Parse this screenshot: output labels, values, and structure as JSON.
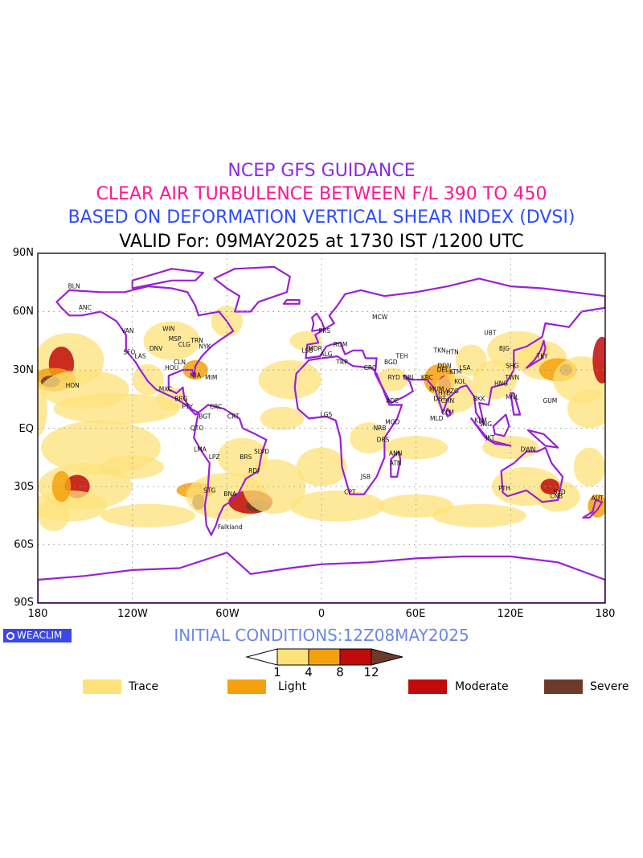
{
  "titles": {
    "line1": "NCEP GFS GUIDANCE",
    "line2": "CLEAR AIR TURBULENCE BETWEEN F/L 390 TO 450",
    "line3": "BASED ON DEFORMATION VERTICAL SHEAR INDEX (DVSI)",
    "line4": "VALID For: 09MAY2025 at 1730 IST /1200 UTC"
  },
  "axes": {
    "lat_labels": [
      "90N",
      "60N",
      "30N",
      "EQ",
      "30S",
      "60S",
      "90S"
    ],
    "lon_labels": [
      "180",
      "120W",
      "60W",
      "0",
      "60E",
      "120E",
      "180"
    ]
  },
  "logo": {
    "text": "WEACLIM",
    "icon": "circle-logo-icon"
  },
  "initial_conditions": "INITIAL CONDITIONS:12Z08MAY2025",
  "colorbar": {
    "ticks": [
      "1",
      "4",
      "8",
      "12"
    ],
    "colors": [
      "#ffffff",
      "#fde27a",
      "#f5a10e",
      "#c10a0a",
      "#6e3a2c"
    ]
  },
  "legend": [
    {
      "label": "Trace",
      "color": "#fde27a"
    },
    {
      "label": "Light",
      "color": "#f5a10e"
    },
    {
      "label": "Moderate",
      "color": "#c10a0a"
    },
    {
      "label": "Severe",
      "color": "#6e3a2c"
    }
  ],
  "station_labels": [
    "ANC",
    "BLN",
    "VAN",
    "WIN",
    "SFO",
    "LAS",
    "DNV",
    "MSP",
    "CLG",
    "TRN",
    "NYK",
    "HOU",
    "MIA",
    "MXC",
    "HON",
    "BRG",
    "PTY",
    "BGT",
    "CRC",
    "CRT",
    "QTO",
    "LMA",
    "LPZ",
    "BRS",
    "SLVD",
    "RDJ",
    "STG",
    "BNA",
    "Falkland",
    "MCW",
    "PRS",
    "MDR",
    "ROM",
    "LSB",
    "ALG",
    "TRP",
    "CRO",
    "RYD",
    "BGD",
    "TEH",
    "DBI",
    "KRC",
    "DEL",
    "KTM",
    "LSA",
    "KOL",
    "MUM",
    "HYD",
    "CHN",
    "VZG",
    "DBT",
    "CLM",
    "MLD",
    "ADE",
    "MGD",
    "NRB",
    "DRS",
    "ANN",
    "ATN",
    "JSB",
    "CPT",
    "LGS",
    "UBT",
    "BJG",
    "SHG",
    "TKY",
    "TWN",
    "HNG",
    "MNL",
    "BKK",
    "KLM",
    "SNG",
    "JKT",
    "DWN",
    "GUM",
    "PTH",
    "SYD",
    "CNB",
    "AUT",
    "DDN",
    "HTN",
    "TKN",
    "MIM",
    "CLN"
  ]
}
